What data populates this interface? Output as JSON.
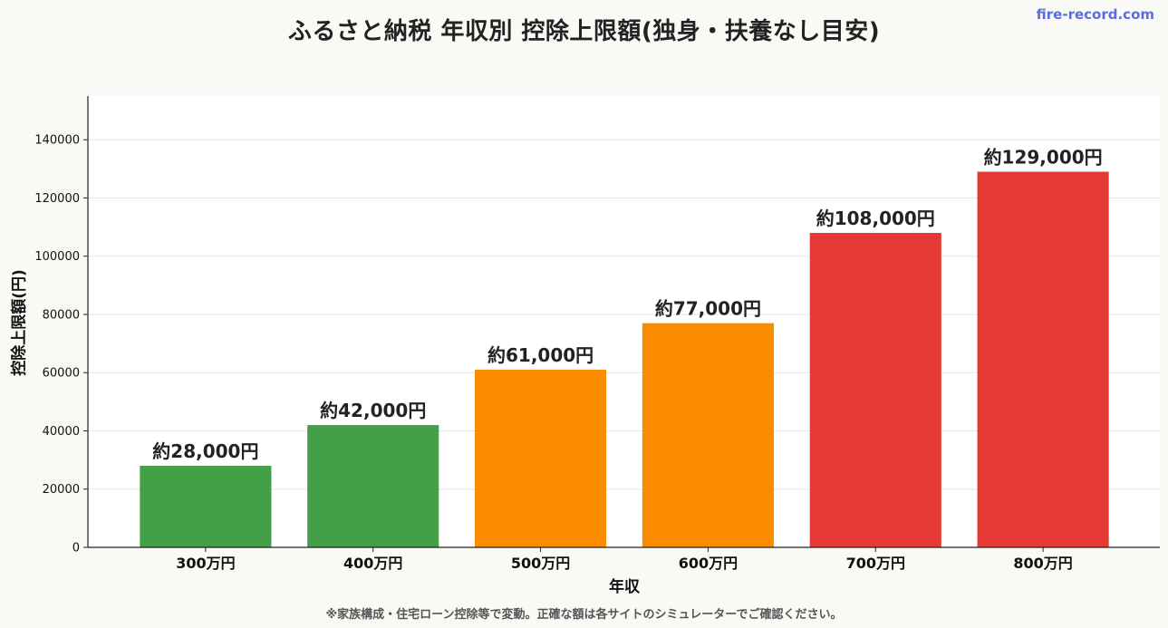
{
  "brand": "fire-record.com",
  "footnote": "※家族構成・住宅ローン控除等で変動。正確な額は各サイトのシミュレーターでご確認ください。",
  "colors": {
    "low": "#43a047",
    "mid": "#fb8c00",
    "high": "#e53935",
    "grid": "#e6e6e6",
    "axis": "#222222",
    "background": "#f9f9f5",
    "brand": "#5b6ee1"
  },
  "chart_data": {
    "type": "bar",
    "title": "ふるさと納税 年収別 控除上限額(独身・扶養なし目安)",
    "xlabel": "年収",
    "ylabel": "控除上限額(円)",
    "categories": [
      "300万円",
      "400万円",
      "500万円",
      "600万円",
      "700万円",
      "800万円"
    ],
    "values": [
      28000,
      42000,
      61000,
      77000,
      108000,
      129000
    ],
    "data_labels": [
      "約28,000円",
      "約42,000円",
      "約61,000円",
      "約77,000円",
      "約108,000円",
      "約129,000円"
    ],
    "bar_colors": [
      "#43a047",
      "#43a047",
      "#fb8c00",
      "#fb8c00",
      "#e53935",
      "#e53935"
    ],
    "yticks": [
      "0",
      "20000",
      "40000",
      "60000",
      "80000",
      "100000",
      "120000",
      "140000"
    ],
    "ylim": [
      0,
      155000
    ],
    "grid": true
  }
}
